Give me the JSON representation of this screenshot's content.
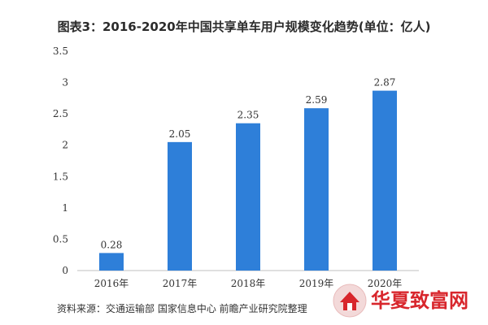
{
  "chart_data": {
    "type": "bar",
    "title": "图表3：2016-2020年中国共享单车用户规模变化趋势(单位：亿人)",
    "categories": [
      "2016年",
      "2017年",
      "2018年",
      "2019年",
      "2020年"
    ],
    "values": [
      0.28,
      2.05,
      2.35,
      2.59,
      2.87
    ],
    "value_labels": [
      "0.28",
      "2.05",
      "2.35",
      "2.59",
      "2.87"
    ],
    "ylim": [
      0,
      3.5
    ],
    "yticks": [
      0,
      0.5,
      1,
      1.5,
      2,
      2.5,
      3,
      3.5
    ],
    "ytick_labels": [
      "0",
      "0.5",
      "1",
      "1.5",
      "2",
      "2.5",
      "3",
      "3.5"
    ],
    "xlabel": "",
    "ylabel": "",
    "grid": false,
    "bar_color": "#2e7fd9"
  },
  "source_text": "资料来源：交通运输部 国家信息中心 前瞻产业研究院整理",
  "watermark": {
    "logo_text": "华夏致富网",
    "logo_color": "#d8262c"
  }
}
